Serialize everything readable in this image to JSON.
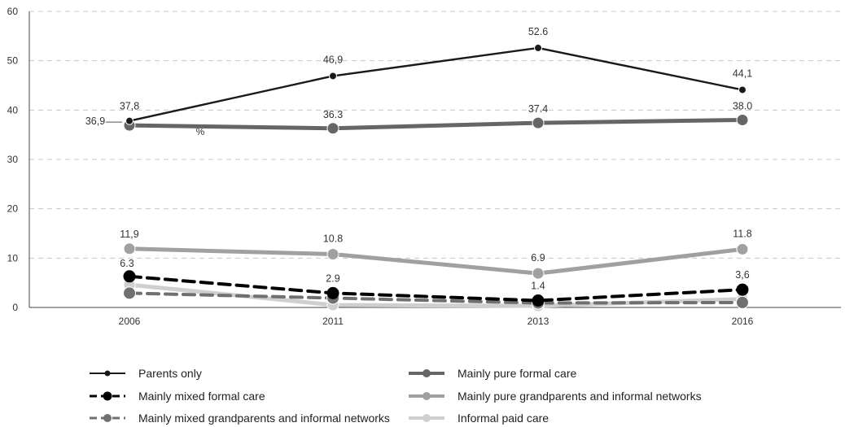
{
  "chart_data": {
    "type": "line",
    "title": "",
    "xlabel": "",
    "ylabel": "%",
    "categories": [
      "2006",
      "2011",
      "2013",
      "2016"
    ],
    "ylim": [
      0,
      60
    ],
    "yticks": [
      "0",
      "10",
      "20",
      "30",
      "40",
      "50",
      "60"
    ],
    "grid": true,
    "legend_position": "bottom",
    "series": [
      {
        "name": "Parents only",
        "values": [
          37.8,
          46.9,
          52.6,
          44.1
        ],
        "labels": [
          "37,8",
          "46,9",
          "52.6",
          "44,1"
        ],
        "color": "#1a1a1a",
        "style": "solid-thin"
      },
      {
        "name": "Mainly pure formal care",
        "values": [
          36.9,
          36.3,
          37.4,
          38.0
        ],
        "labels": [
          "36,9",
          "36.3",
          "37.4",
          "38.0"
        ],
        "color": "#666666",
        "style": "solid-thick"
      },
      {
        "name": "Mainly mixed formal care",
        "values": [
          6.3,
          2.9,
          1.4,
          3.6
        ],
        "labels": [
          "6.3",
          "2.9",
          "1.4",
          "3,6"
        ],
        "color": "#000000",
        "style": "dashed-thick"
      },
      {
        "name": "Mainly pure grandparents and informal networks",
        "values": [
          11.9,
          10.8,
          6.9,
          11.8
        ],
        "labels": [
          "11,9",
          "10.8",
          "6.9",
          "11.8"
        ],
        "color": "#a0a0a0",
        "style": "solid-thick"
      },
      {
        "name": "Mainly mixed grandparents and informal networks",
        "values": [
          2.9,
          1.9,
          0.9,
          1.0
        ],
        "labels": [],
        "color": "#707070",
        "style": "dashed-thick"
      },
      {
        "name": "Informal paid care",
        "values": [
          4.6,
          0.5,
          0.3,
          1.7
        ],
        "labels": [],
        "color": "#cfcfcf",
        "style": "solid-thick"
      }
    ]
  }
}
